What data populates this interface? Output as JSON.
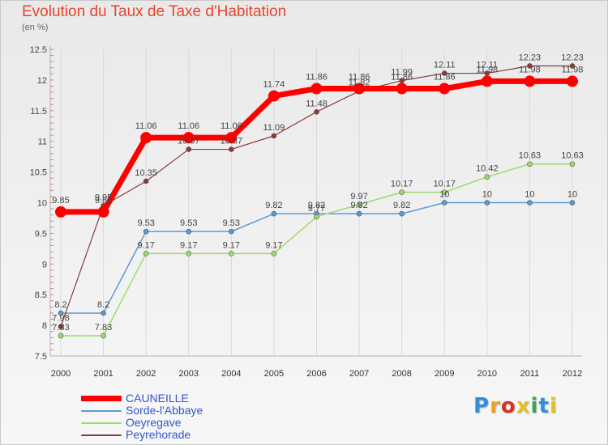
{
  "title": "Evolution du Taux de Taxe d'Habitation",
  "subtitle": "(en %)",
  "logo": {
    "text": "Proxiti",
    "colors": [
      "#2f8fd8",
      "#f0a020",
      "#d0342c",
      "#e8c020",
      "#3aa84a",
      "#2f8fd8",
      "#e8c020"
    ]
  },
  "chart_data": {
    "type": "line",
    "x": [
      "2000",
      "2001",
      "2002",
      "2003",
      "2004",
      "2005",
      "2006",
      "2007",
      "2008",
      "2009",
      "2010",
      "2011",
      "2012"
    ],
    "ylim": [
      7.5,
      12.5
    ],
    "yticks": [
      "7.5",
      "8",
      "8.5",
      "9",
      "9.5",
      "10",
      "10.5",
      "11",
      "11.5",
      "12",
      "12.5"
    ],
    "grid": "vertical",
    "legend_position": "bottom-left",
    "series": [
      {
        "name": "CAUNEILLE",
        "color": "#ff0000",
        "width": 7,
        "marker": 7,
        "values": [
          9.85,
          9.85,
          11.06,
          11.06,
          11.06,
          11.74,
          11.86,
          11.86,
          11.86,
          11.86,
          11.98,
          11.98,
          11.98
        ],
        "labels": [
          "9.85",
          "9.85",
          "11.06",
          "11.06",
          "11.06",
          "11.74",
          "11.86",
          "11.86",
          "11.86",
          "11.86",
          "11.98",
          "11.98",
          "11.98"
        ]
      },
      {
        "name": "Sorde-l'Abbaye",
        "color": "#5b9bd5",
        "width": 1.5,
        "marker": 3,
        "values": [
          8.2,
          8.2,
          9.53,
          9.53,
          9.53,
          9.82,
          9.82,
          9.82,
          9.82,
          10,
          10,
          10,
          10
        ],
        "labels": [
          "8.2",
          "8.2",
          "9.53",
          "9.53",
          "9.53",
          "9.82",
          "9.82",
          "9.82",
          "9.82",
          "10",
          "10",
          "10",
          "10"
        ]
      },
      {
        "name": "Oeyregave",
        "color": "#9ddb6a",
        "width": 1.5,
        "marker": 3,
        "values": [
          7.83,
          7.83,
          9.17,
          9.17,
          9.17,
          9.17,
          9.77,
          9.97,
          10.17,
          10.17,
          10.42,
          10.63,
          10.63
        ],
        "labels": [
          "7.83",
          "7.83",
          "9.17",
          "9.17",
          "9.17",
          "9.17",
          "9.77",
          "9.97",
          "10.17",
          "10.17",
          "10.42",
          "10.63",
          "10.63"
        ]
      },
      {
        "name": "Peyrehorade",
        "color": "#8b3a3a",
        "width": 1.2,
        "marker": 3,
        "values": [
          7.98,
          9.95,
          10.35,
          10.87,
          10.87,
          11.09,
          11.48,
          11.82,
          11.99,
          12.11,
          12.11,
          12.23,
          12.23
        ],
        "labels": [
          "7.98",
          "9.95",
          "10.35",
          "10.87",
          "10.87",
          "11.09",
          "11.48",
          "11.82",
          "11.99",
          "12.11",
          "12.11",
          "12.23",
          "12.23"
        ]
      }
    ]
  }
}
